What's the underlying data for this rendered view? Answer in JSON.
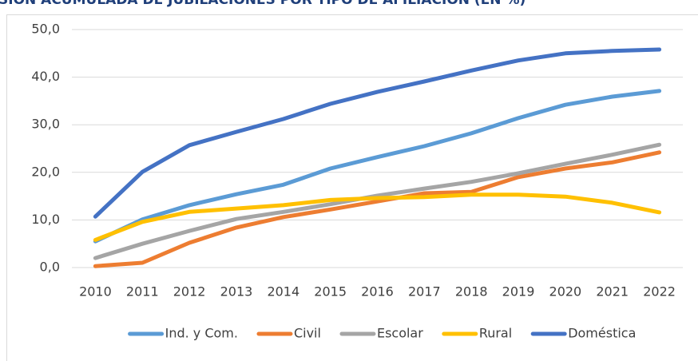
{
  "chart_data": {
    "type": "line",
    "title": "SIÓN ACUMULADA DE JUBILACIONES POR TIPO DE AFILIACIÓN (EN %)",
    "categories": [
      "2010",
      "2011",
      "2012",
      "2013",
      "2014",
      "2015",
      "2016",
      "2017",
      "2018",
      "2019",
      "2020",
      "2021",
      "2022"
    ],
    "series": [
      {
        "name": "Ind. y Com.",
        "color": "#5b9bd5",
        "values": [
          5.5,
          10.1,
          13.1,
          15.4,
          17.4,
          20.8,
          23.2,
          25.5,
          28.2,
          31.4,
          34.2,
          35.9,
          37.1
        ]
      },
      {
        "name": "Civil",
        "color": "#ed7d31",
        "values": [
          0.3,
          1.0,
          5.2,
          8.4,
          10.6,
          12.2,
          13.9,
          15.6,
          15.9,
          19.0,
          20.8,
          22.1,
          24.2
        ]
      },
      {
        "name": "Escolar",
        "color": "#a5a5a5",
        "values": [
          2.0,
          5.0,
          7.7,
          10.2,
          11.7,
          13.3,
          15.1,
          16.6,
          18.0,
          19.8,
          21.8,
          23.7,
          25.8
        ]
      },
      {
        "name": "Rural",
        "color": "#ffc000",
        "values": [
          5.8,
          9.6,
          11.7,
          12.4,
          13.1,
          14.2,
          14.6,
          14.8,
          15.3,
          15.3,
          14.9,
          13.6,
          11.6
        ]
      },
      {
        "name": "Doméstica",
        "color": "#4472c4",
        "values": [
          10.7,
          20.1,
          25.7,
          28.5,
          31.2,
          34.4,
          36.9,
          39.1,
          41.4,
          43.5,
          45.0,
          45.5,
          45.8
        ]
      }
    ],
    "ylim": [
      0,
      50
    ],
    "yticks": [
      {
        "value": 0,
        "label": "0,0"
      },
      {
        "value": 10,
        "label": "10,0"
      },
      {
        "value": 20,
        "label": "20,0"
      },
      {
        "value": 30,
        "label": "30,0"
      },
      {
        "value": 40,
        "label": "40,0"
      },
      {
        "value": 50,
        "label": "50,0"
      }
    ],
    "grid": true,
    "legend": "bottom"
  }
}
